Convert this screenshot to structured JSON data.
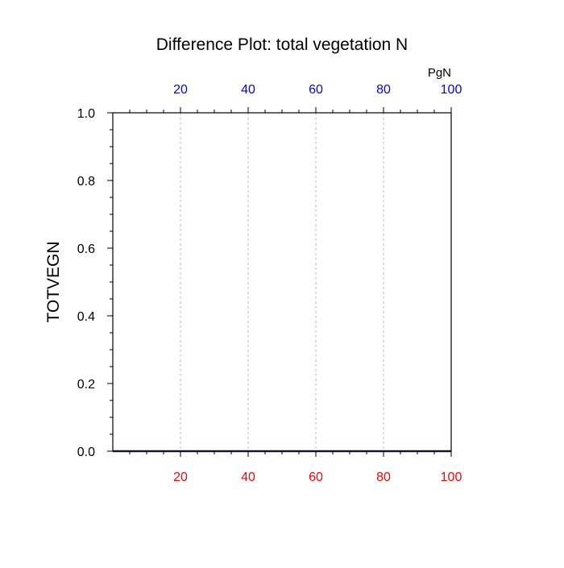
{
  "chart_data": {
    "type": "line",
    "title": "Difference Plot: total vegetation N",
    "ylabel": "TOTVEGN",
    "top_axis_unit_label": "PgN",
    "xlim": [
      0,
      100
    ],
    "ylim": [
      0.0,
      1.0
    ],
    "grid": true,
    "bottom_x_ticks": [
      {
        "value": 20,
        "label": "20"
      },
      {
        "value": 40,
        "label": "40"
      },
      {
        "value": 60,
        "label": "60"
      },
      {
        "value": 80,
        "label": "80"
      },
      {
        "value": 100,
        "label": "100"
      }
    ],
    "top_x_ticks": [
      {
        "value": 20,
        "label": "20"
      },
      {
        "value": 40,
        "label": "40"
      },
      {
        "value": 60,
        "label": "60"
      },
      {
        "value": 80,
        "label": "80"
      },
      {
        "value": 100,
        "label": "100"
      }
    ],
    "y_ticks": [
      {
        "value": 0.0,
        "label": "0.0"
      },
      {
        "value": 0.2,
        "label": "0.2"
      },
      {
        "value": 0.4,
        "label": "0.4"
      },
      {
        "value": 0.6,
        "label": "0.6"
      },
      {
        "value": 0.8,
        "label": "0.8"
      },
      {
        "value": 1.0,
        "label": "1.0"
      }
    ],
    "series": [
      {
        "x": [
          0,
          100
        ],
        "y": [
          0.0,
          0.0
        ],
        "color": "#2b2b7a"
      }
    ],
    "colors": {
      "bottom_tick_labels": "#ff0000",
      "top_tick_labels": "#0000ff",
      "grid": "#bbbbbb",
      "axes": "#000000",
      "text": "#000000"
    }
  }
}
